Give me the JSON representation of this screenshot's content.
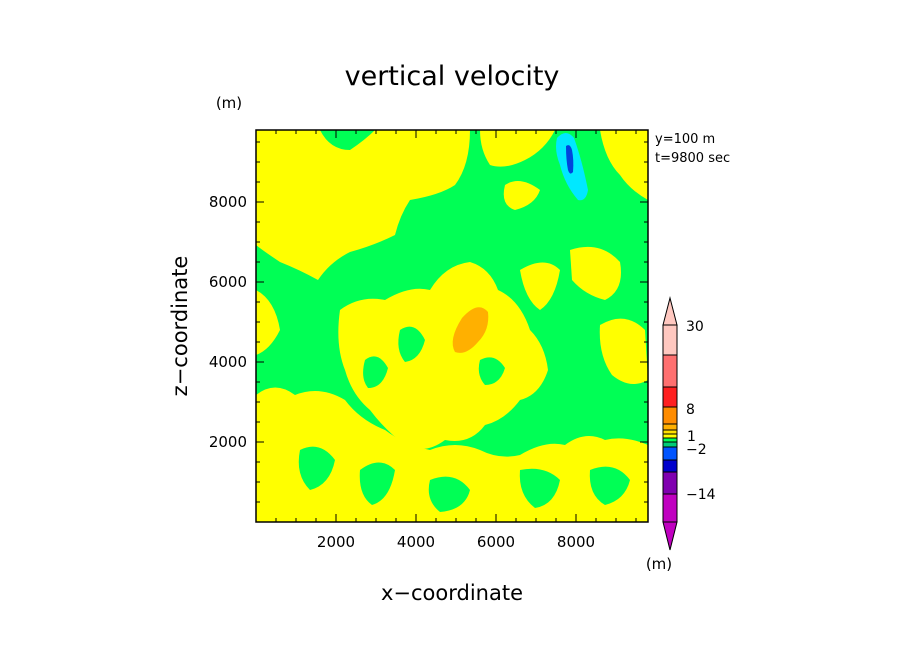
{
  "chart_data": {
    "type": "heatmap",
    "title": "vertical velocity",
    "xlabel": "x−coordinate",
    "ylabel": "z−coordinate",
    "unit_y": "(m)",
    "unit_x": "(m)",
    "xlim": [
      0,
      9800
    ],
    "ylim": [
      0,
      9800
    ],
    "xticks": [
      "2000",
      "4000",
      "6000",
      "8000"
    ],
    "yticks": [
      "2000",
      "4000",
      "6000",
      "8000"
    ],
    "annotations": [
      "y=100 m",
      "t=9800 sec"
    ],
    "colorbar": {
      "labels": [
        "30",
        "8",
        "1",
        "−2",
        "−14"
      ],
      "colors": [
        "#ffc8c0",
        "#ff7070",
        "#ff2020",
        "#ff8c00",
        "#ffb000",
        "#ffe000",
        "#ffff00",
        "#00ff55",
        "#00cc77",
        "#0055ff",
        "#0000cc",
        "#8000b0",
        "#c000c0"
      ],
      "levels": [
        30,
        8,
        1,
        -2,
        -14
      ]
    },
    "fields": [
      {
        "name": "background",
        "value": "green",
        "color": "#00ff55"
      },
      {
        "name": "updraft region",
        "value": "yellow",
        "color": "#ffff00"
      },
      {
        "name": "strong updraft",
        "value": "orange",
        "color": "#ffb000"
      },
      {
        "name": "downdraft",
        "value": "cyan",
        "color": "#00e8ff"
      },
      {
        "name": "strong downdraft",
        "value": "blue",
        "color": "#0044dd"
      }
    ]
  }
}
